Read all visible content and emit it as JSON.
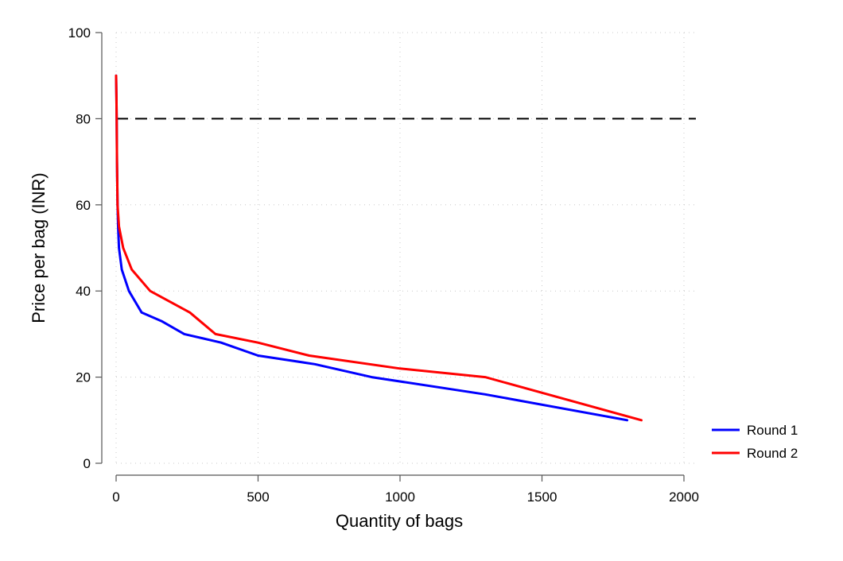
{
  "chart_data": {
    "type": "line",
    "title": "",
    "xlabel": "Quantity of bags",
    "ylabel": "Price per bag (INR)",
    "xlim": [
      -50,
      2050
    ],
    "ylim": [
      0,
      100
    ],
    "xticks": [
      0,
      500,
      1000,
      1500,
      2000
    ],
    "yticks": [
      0,
      20,
      40,
      60,
      80,
      100
    ],
    "grid": true,
    "legend_position": "right",
    "reference_line": {
      "axis": "y",
      "value": 80,
      "style": "dashed",
      "color": "#000000"
    },
    "series": [
      {
        "name": "Round 1",
        "color": "#0000ff",
        "points": [
          [
            0,
            90
          ],
          [
            1,
            85
          ],
          [
            2,
            80
          ],
          [
            3,
            70
          ],
          [
            5,
            60
          ],
          [
            7,
            55
          ],
          [
            10,
            50
          ],
          [
            20,
            45
          ],
          [
            45,
            40
          ],
          [
            90,
            35
          ],
          [
            160,
            33
          ],
          [
            240,
            30
          ],
          [
            370,
            28
          ],
          [
            500,
            25
          ],
          [
            700,
            23
          ],
          [
            900,
            20
          ],
          [
            1300,
            16
          ],
          [
            1800,
            10
          ]
        ]
      },
      {
        "name": "Round 2",
        "color": "#ff0000",
        "points": [
          [
            0,
            90
          ],
          [
            1,
            85
          ],
          [
            2,
            80
          ],
          [
            3,
            70
          ],
          [
            5,
            60
          ],
          [
            10,
            55
          ],
          [
            25,
            50
          ],
          [
            55,
            45
          ],
          [
            120,
            40
          ],
          [
            260,
            35
          ],
          [
            350,
            30
          ],
          [
            500,
            28
          ],
          [
            680,
            25
          ],
          [
            1000,
            22
          ],
          [
            1300,
            20
          ],
          [
            1850,
            10
          ]
        ]
      }
    ]
  },
  "legend": {
    "items": [
      {
        "label": "Round 1",
        "color": "#0000ff"
      },
      {
        "label": "Round 2",
        "color": "#ff0000"
      }
    ]
  }
}
